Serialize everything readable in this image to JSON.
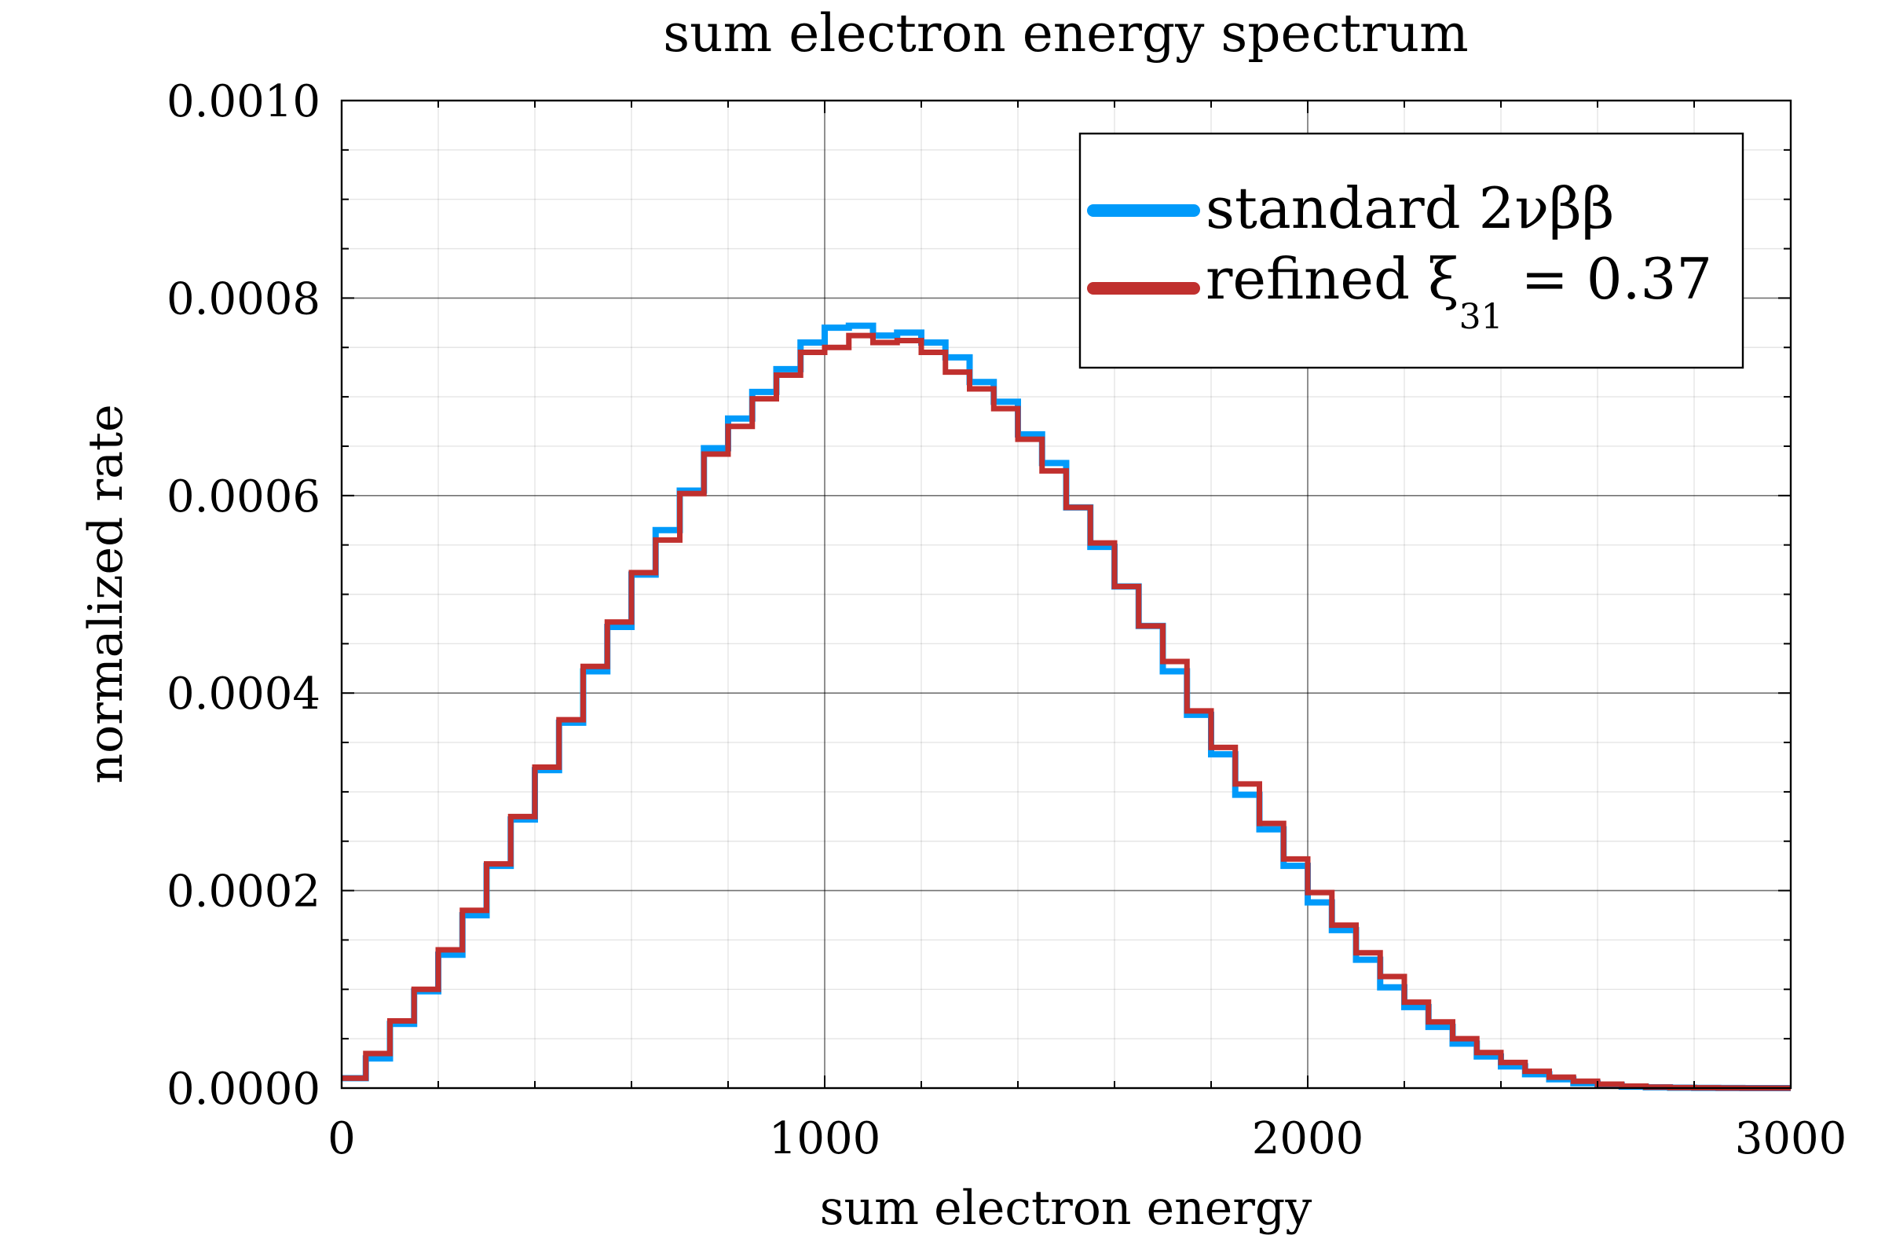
{
  "chart_data": {
    "type": "line",
    "step": true,
    "title": "sum electron energy spectrum",
    "xlabel": "sum electron energy",
    "ylabel": "normalized rate",
    "xlim": [
      0,
      3000
    ],
    "ylim": [
      0,
      0.001
    ],
    "xticks": [
      0,
      1000,
      2000,
      3000
    ],
    "xtick_labels": [
      "0",
      "1000",
      "2000",
      "3000"
    ],
    "yticks": [
      0,
      0.0002,
      0.0004,
      0.0006,
      0.0008,
      0.001
    ],
    "ytick_labels": [
      "0.0000",
      "0.0002",
      "0.0004",
      "0.0006",
      "0.0008",
      "0.0010"
    ],
    "grid": true,
    "minor_grid": true,
    "legend_position": "top-right",
    "bin_width": 50,
    "x": [
      0,
      50,
      100,
      150,
      200,
      250,
      300,
      350,
      400,
      450,
      500,
      550,
      600,
      650,
      700,
      750,
      800,
      850,
      900,
      950,
      1000,
      1050,
      1100,
      1150,
      1200,
      1250,
      1300,
      1350,
      1400,
      1450,
      1500,
      1550,
      1600,
      1650,
      1700,
      1750,
      1800,
      1850,
      1900,
      1950,
      2000,
      2050,
      2100,
      2150,
      2200,
      2250,
      2300,
      2350,
      2400,
      2450,
      2500,
      2550,
      2600,
      2650,
      2700,
      2750,
      2800,
      2850,
      2900,
      2950
    ],
    "series": [
      {
        "name": "standard 2νββ",
        "color": "#009AFA",
        "values": [
          1e-05,
          3e-05,
          6.5e-05,
          9.8e-05,
          0.000135,
          0.000175,
          0.000225,
          0.000272,
          0.000322,
          0.00037,
          0.000422,
          0.000467,
          0.00052,
          0.000565,
          0.000605,
          0.000648,
          0.000678,
          0.000705,
          0.000728,
          0.000755,
          0.00077,
          0.000772,
          0.000762,
          0.000765,
          0.000755,
          0.00074,
          0.000715,
          0.000695,
          0.000662,
          0.000633,
          0.000588,
          0.000548,
          0.000508,
          0.000468,
          0.000422,
          0.000378,
          0.000338,
          0.000297,
          0.000262,
          0.000225,
          0.000188,
          0.00016,
          0.00013,
          0.000102,
          8.2e-05,
          6.2e-05,
          4.5e-05,
          3.2e-05,
          2.2e-05,
          1.4e-05,
          9e-06,
          5e-06,
          3e-06,
          1.5e-06,
          8e-07,
          4e-07,
          2e-07,
          1e-07,
          5e-08,
          2e-08
        ]
      },
      {
        "name": "refined ξ31 = 0.37",
        "color": "#C0302E",
        "values": [
          1e-05,
          3.5e-05,
          6.8e-05,
          0.0001,
          0.00014,
          0.00018,
          0.000227,
          0.000275,
          0.000325,
          0.000373,
          0.000427,
          0.000472,
          0.000522,
          0.000555,
          0.000602,
          0.000642,
          0.00067,
          0.000698,
          0.000722,
          0.000745,
          0.00075,
          0.000762,
          0.000755,
          0.000757,
          0.000745,
          0.000725,
          0.000708,
          0.000688,
          0.000657,
          0.000625,
          0.000588,
          0.000552,
          0.000508,
          0.000468,
          0.000432,
          0.000382,
          0.000345,
          0.000308,
          0.000268,
          0.000232,
          0.000198,
          0.000165,
          0.000137,
          0.000113,
          8.7e-05,
          6.7e-05,
          5e-05,
          3.6e-05,
          2.6e-05,
          1.7e-05,
          1.1e-05,
          7e-06,
          4e-06,
          2e-06,
          1e-06,
          5e-07,
          3e-07,
          1e-07,
          5e-08,
          2e-08
        ]
      }
    ]
  },
  "legend": {
    "items": [
      {
        "main": "standard 2νββ",
        "sub": "",
        "rest": ""
      },
      {
        "main": "refined ξ",
        "sub": "31",
        "rest": " = 0.37"
      }
    ]
  }
}
